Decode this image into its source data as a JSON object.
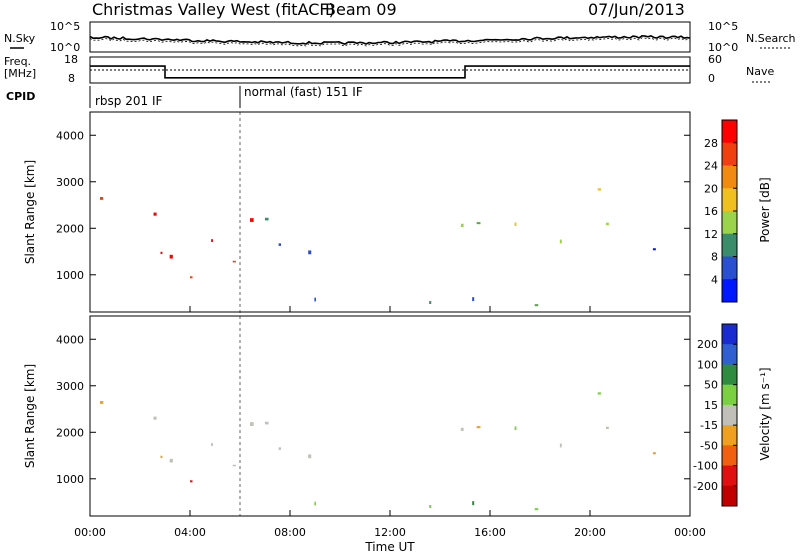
{
  "header": {
    "station": "Christmas Valley West (fitACF)",
    "beam": "Beam 09",
    "date": "07/Jun/2013"
  },
  "top_panel": {
    "left_label": "N.Sky",
    "right_label": "N.Search",
    "left_ticks": [
      "10^5",
      "10^0"
    ],
    "right_ticks": [
      "10^5",
      "10^0"
    ]
  },
  "freq_panel": {
    "left_label_line1": "Freq.",
    "left_label_line2": "[MHz]",
    "right_label": "Nave",
    "left_ticks": [
      "18",
      "8"
    ],
    "right_ticks": [
      "60",
      "0"
    ]
  },
  "cpid": {
    "label": "CPID",
    "segments": [
      "rbsp 201 IF",
      "normal (fast) 151 IF"
    ]
  },
  "power_panel": {
    "ylabel": "Slant Range [km]",
    "colorbar_label": "Power [dB]",
    "colorbar_ticks": [
      "28",
      "24",
      "20",
      "16",
      "12",
      "8",
      "4"
    ]
  },
  "velocity_panel": {
    "ylabel": "Slant Range [km]",
    "colorbar_label": "Velocity [m s⁻¹]",
    "colorbar_ticks": [
      "200",
      "100",
      "50",
      "15",
      "-15",
      "-50",
      "-100",
      "-200"
    ]
  },
  "x_axis": {
    "label": "Time UT",
    "ticks": [
      "00:00",
      "04:00",
      "08:00",
      "12:00",
      "16:00",
      "20:00",
      "00:00"
    ]
  },
  "y_axis_ticks": [
    "4000",
    "3000",
    "2000",
    "1000"
  ],
  "chart_data": {
    "type": "heatmap",
    "x_range_hours": [
      0,
      24
    ],
    "y_range_km": [
      200,
      4500
    ],
    "power_scale_db": [
      0,
      30
    ],
    "velocity_scale_ms": [
      -200,
      200
    ],
    "echo_regions": [
      {
        "t0": 0.4,
        "t1": 6.9,
        "r0": 800,
        "r1": 2800,
        "power_db": 26,
        "velocity_ms": -10
      },
      {
        "t0": 3.8,
        "t1": 7.2,
        "r0": 850,
        "r1": 1200,
        "power_db": 24,
        "velocity_ms": -200
      },
      {
        "t0": 6.0,
        "t1": 9.0,
        "r0": 1400,
        "r1": 2900,
        "power_db": 6,
        "velocity_ms": 0
      },
      {
        "t0": 13.8,
        "t1": 15.0,
        "r0": 1300,
        "r1": 2500,
        "power_db": 14,
        "velocity_ms": -5
      },
      {
        "t0": 15.0,
        "t1": 21.0,
        "r0": 1500,
        "r1": 3000,
        "power_db": 14,
        "velocity_ms": 0
      },
      {
        "t0": 22.5,
        "t1": 24.0,
        "r0": 1400,
        "r1": 2000,
        "power_db": 6,
        "velocity_ms": 0
      },
      {
        "t0": 0.0,
        "t1": 24.0,
        "r0": 200,
        "r1": 500,
        "power_db": 10,
        "velocity_ms": 40
      }
    ],
    "frequency_mhz": [
      {
        "t": 0.0,
        "freq": 14.5
      },
      {
        "t": 3.0,
        "freq": 14.5
      },
      {
        "t": 3.0,
        "freq": 10.0
      },
      {
        "t": 15.0,
        "freq": 10.0
      },
      {
        "t": 15.0,
        "freq": 14.5
      },
      {
        "t": 24.0,
        "freq": 14.5
      }
    ],
    "cpid_change_hour": 6.0
  }
}
